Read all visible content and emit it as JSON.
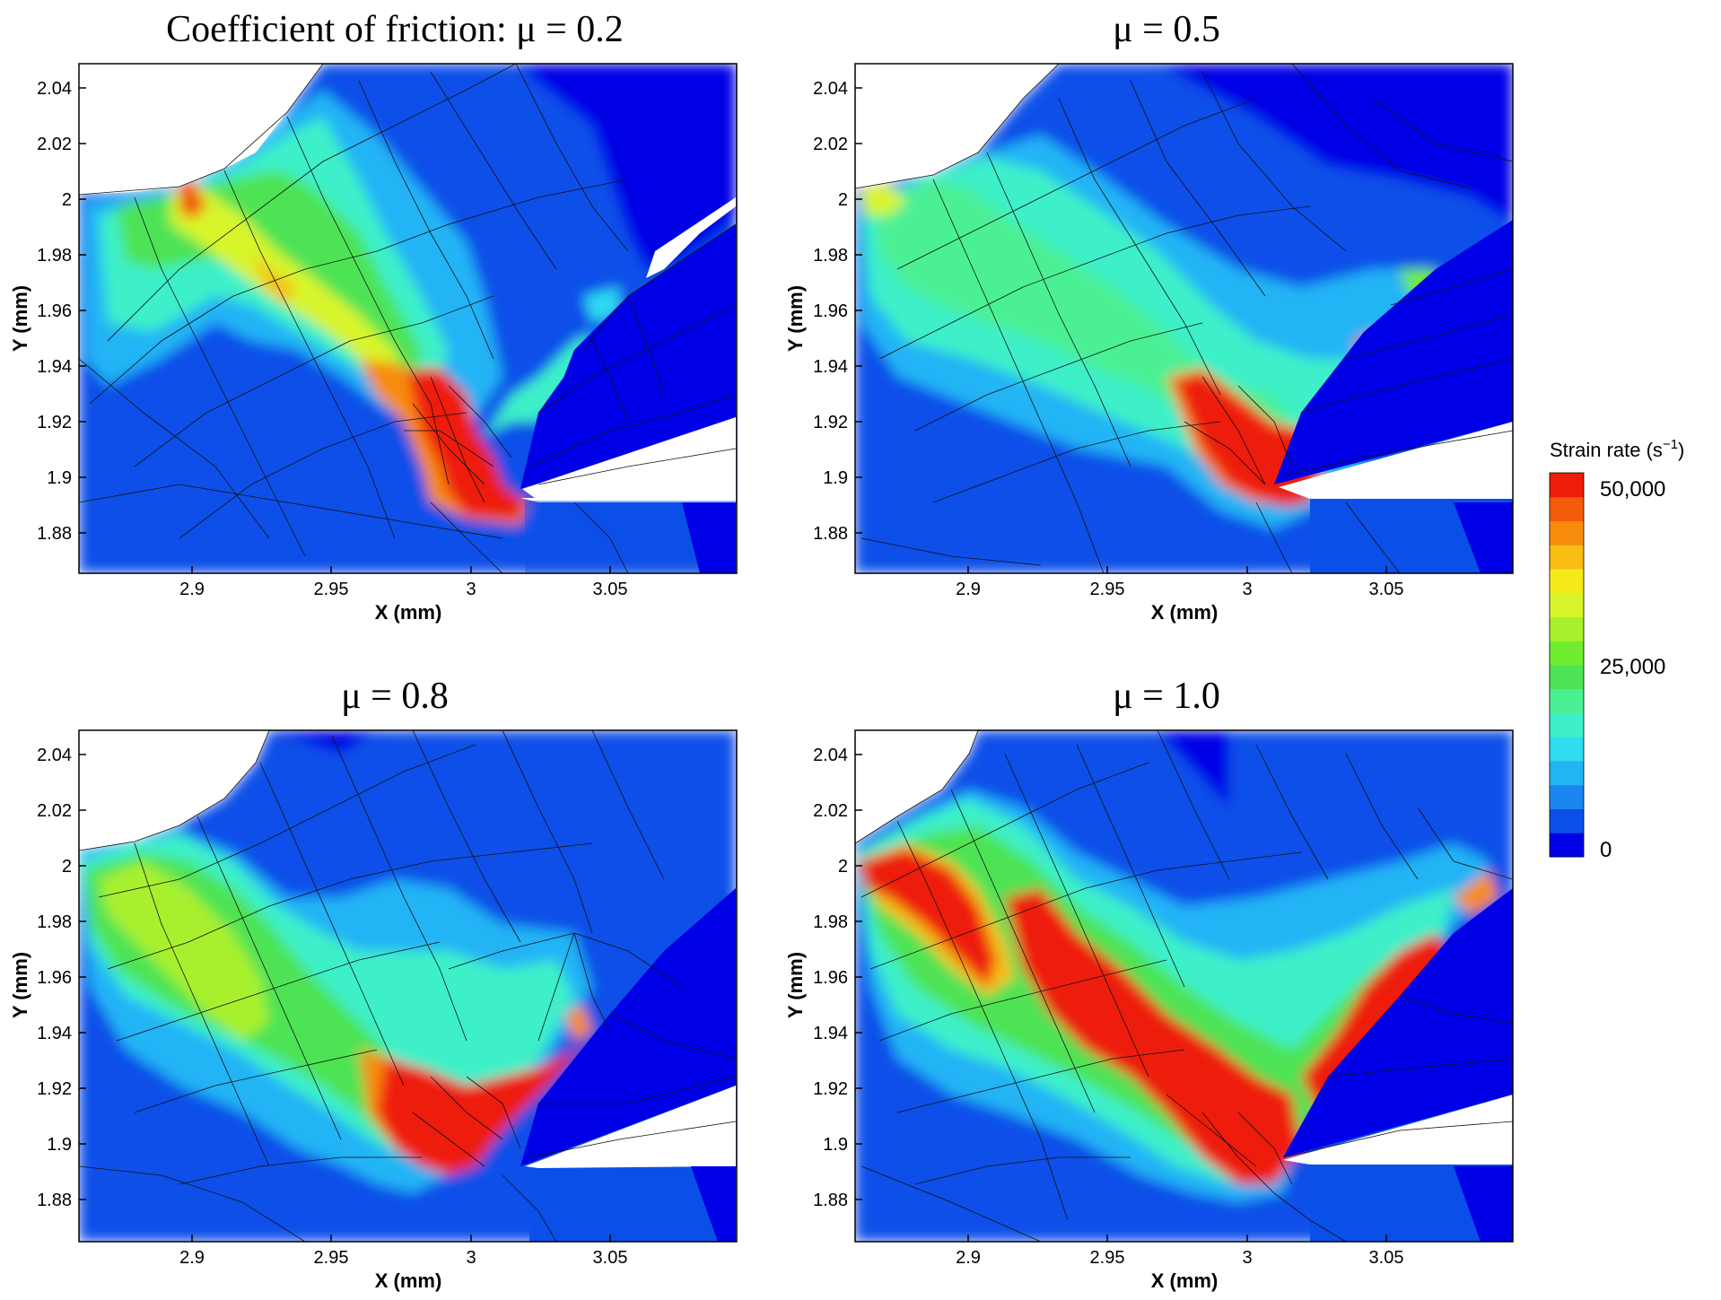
{
  "chart_data": [
    {
      "type": "heatmap",
      "title": "Coefficient of friction: μ = 0.2",
      "xlabel": "X (mm)",
      "ylabel": "Y (mm)",
      "xlim": [
        2.86,
        3.095
      ],
      "ylim": [
        1.865,
        2.048
      ],
      "x_ticks": [
        "2.9",
        "2.95",
        "3",
        "3.05"
      ],
      "y_ticks": [
        "2.04",
        "2.02",
        "2",
        "1.98",
        "1.96",
        "1.94",
        "1.92",
        "1.9",
        "1.88"
      ],
      "mu": 0.2
    },
    {
      "type": "heatmap",
      "title": "μ = 0.5",
      "xlabel": "X (mm)",
      "ylabel": "Y (mm)",
      "xlim": [
        2.86,
        3.095
      ],
      "ylim": [
        1.865,
        2.048
      ],
      "x_ticks": [
        "2.9",
        "2.95",
        "3",
        "3.05"
      ],
      "y_ticks": [
        "2.04",
        "2.02",
        "2",
        "1.98",
        "1.96",
        "1.94",
        "1.92",
        "1.9",
        "1.88"
      ],
      "mu": 0.5
    },
    {
      "type": "heatmap",
      "title": "μ = 0.8",
      "xlabel": "X (mm)",
      "ylabel": "Y (mm)",
      "xlim": [
        2.86,
        3.095
      ],
      "ylim": [
        1.865,
        2.048
      ],
      "x_ticks": [
        "2.9",
        "2.95",
        "3",
        "3.05"
      ],
      "y_ticks": [
        "2.04",
        "2.02",
        "2",
        "1.98",
        "1.96",
        "1.94",
        "1.92",
        "1.9",
        "1.88"
      ],
      "mu": 0.8
    },
    {
      "type": "heatmap",
      "title": "μ = 1.0",
      "xlabel": "X (mm)",
      "ylabel": "Y (mm)",
      "xlim": [
        2.86,
        3.095
      ],
      "ylim": [
        1.865,
        2.048
      ],
      "x_ticks": [
        "2.9",
        "2.95",
        "3",
        "3.05"
      ],
      "y_ticks": [
        "2.04",
        "2.02",
        "2",
        "1.98",
        "1.96",
        "1.94",
        "1.92",
        "1.9",
        "1.88"
      ],
      "mu": 1.0
    }
  ],
  "colorbar": {
    "title": "Strain rate (s",
    "title_sup": "−1",
    "title_end": ")",
    "range": [
      0,
      50000
    ],
    "labels": [
      "50,000",
      "25,000",
      "0"
    ],
    "colors": [
      "#0000e6",
      "#0a4fe8",
      "#1c86f0",
      "#22b4f5",
      "#2fdcf0",
      "#3df0c9",
      "#4cf094",
      "#4ee354",
      "#70ec2e",
      "#a8f02e",
      "#d7f52a",
      "#f5ea1a",
      "#f7bd12",
      "#f78c0c",
      "#f35a0a",
      "#ee1c0a"
    ]
  }
}
